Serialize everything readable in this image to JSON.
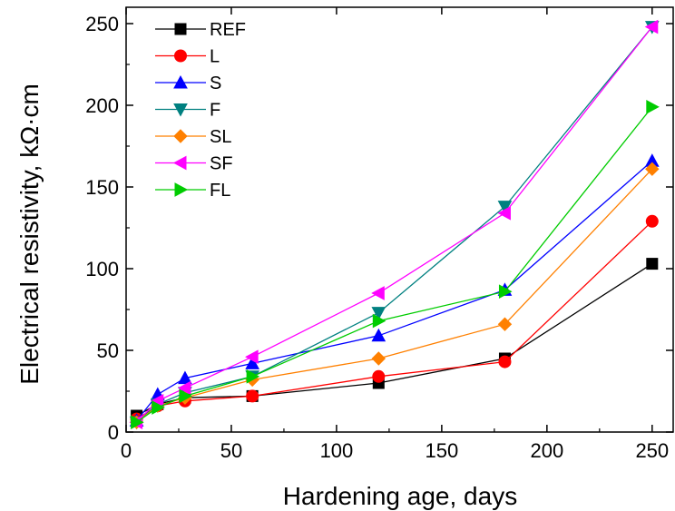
{
  "chart_data": {
    "type": "line",
    "xlabel": "Hardening age, days",
    "ylabel": "Electrical resistivity, kΩ·cm",
    "xlim": [
      0,
      260
    ],
    "ylim": [
      0,
      260
    ],
    "xticks": [
      0,
      50,
      100,
      150,
      200,
      250
    ],
    "yticks": [
      0,
      50,
      100,
      150,
      200,
      250
    ],
    "x": [
      5,
      15,
      28,
      60,
      120,
      180,
      250
    ],
    "legend_position": "top-left",
    "series": [
      {
        "name": "REF",
        "color": "#000000",
        "marker": "square",
        "values": [
          10,
          17,
          21,
          22,
          30,
          45,
          103
        ]
      },
      {
        "name": "L",
        "color": "#ff0000",
        "marker": "circle",
        "values": [
          8,
          16,
          19,
          22,
          34,
          43,
          129
        ]
      },
      {
        "name": "S",
        "color": "#0000ff",
        "marker": "triangle-up",
        "values": [
          7,
          23,
          33,
          42,
          59,
          87,
          166
        ]
      },
      {
        "name": "F",
        "color": "#008080",
        "marker": "triangle-down",
        "values": [
          6,
          17,
          24,
          34,
          73,
          138,
          248
        ]
      },
      {
        "name": "SL",
        "color": "#ff8000",
        "marker": "diamond",
        "values": [
          6,
          16,
          21,
          32,
          45,
          66,
          161
        ]
      },
      {
        "name": "SF",
        "color": "#ff00ff",
        "marker": "triangle-left",
        "values": [
          6,
          19,
          27,
          46,
          85,
          134,
          248
        ]
      },
      {
        "name": "FL",
        "color": "#00cc00",
        "marker": "triangle-right",
        "values": [
          6,
          15,
          22,
          34,
          68,
          86,
          199
        ]
      }
    ]
  }
}
